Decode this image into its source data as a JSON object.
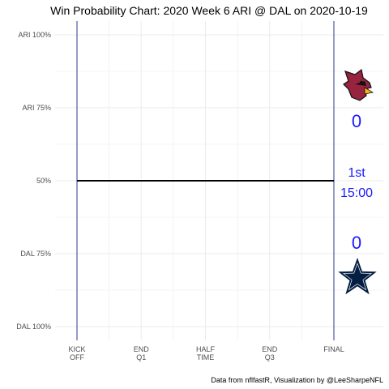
{
  "chart_data": {
    "type": "line",
    "title": "Win Probability Chart: 2020 Week 6 ARI @ DAL on 2020-10-19",
    "caption": "Data from nflfastR, Visualization by @LeeSharpeNFL",
    "y_ticks": [
      {
        "value": 0,
        "label": "ARI 100%"
      },
      {
        "value": 0.25,
        "label": "ARI 75%"
      },
      {
        "value": 0.5,
        "label": "50%"
      },
      {
        "value": 0.75,
        "label": "DAL 75%"
      },
      {
        "value": 1,
        "label": "DAL 100%"
      }
    ],
    "x_ticks": [
      {
        "value": 0,
        "line1": "KICK",
        "line2": "OFF"
      },
      {
        "value": 900,
        "line1": "END",
        "line2": "Q1"
      },
      {
        "value": 1800,
        "line1": "HALF",
        "line2": "TIME"
      },
      {
        "value": 2700,
        "line1": "END",
        "line2": "Q3"
      },
      {
        "value": 3600,
        "line1": "FINAL",
        "line2": ""
      }
    ],
    "xlim": [
      0,
      3600
    ],
    "series": [
      {
        "x": [
          0,
          3600
        ],
        "y": [
          0.5,
          0.5
        ],
        "color": "#000000"
      }
    ],
    "vlines": [
      0,
      3600
    ],
    "grid": true,
    "scoreboard": {
      "away_team": "ARI",
      "home_team": "DAL",
      "away_score": "0",
      "home_score": "0",
      "quarter": "1st",
      "clock": "15:00",
      "text_color": "#1a1aff"
    },
    "colors": {
      "vline": "#2b3a8c",
      "grid": "#ebebeb",
      "ari_red": "#97233F",
      "dal_navy": "#041E42"
    }
  }
}
